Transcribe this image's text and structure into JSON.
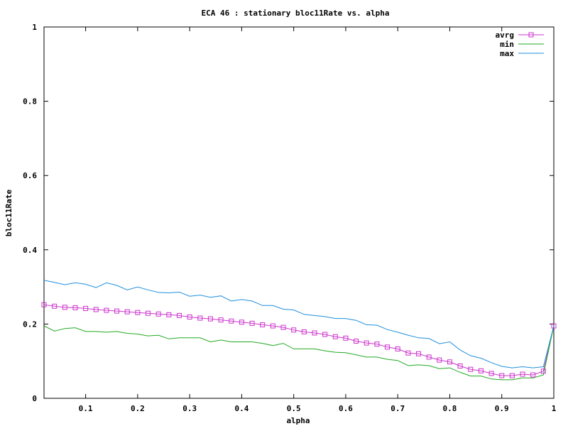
{
  "chart_data": {
    "type": "line",
    "title": "ECA 46 : stationary bloc11Rate vs. alpha",
    "xlabel": "alpha",
    "ylabel": "bloc11Rate",
    "xlim": [
      0.02,
      1.0
    ],
    "ylim": [
      0,
      1
    ],
    "xticks": [
      0.1,
      0.2,
      0.3,
      0.4,
      0.5,
      0.6,
      0.7,
      0.8,
      0.9,
      1.0
    ],
    "xtick_labels": [
      "0.1",
      "0.2",
      "0.3",
      "0.4",
      "0.5",
      "0.6",
      "0.7",
      "0.8",
      "0.9",
      "1"
    ],
    "yticks": [
      0,
      0.2,
      0.4,
      0.6,
      0.8,
      1.0
    ],
    "ytick_labels": [
      "0",
      "0.2",
      "0.4",
      "0.6",
      "0.8",
      "1"
    ],
    "grid": false,
    "legend_position": "top-right",
    "x": [
      0.02,
      0.04,
      0.06,
      0.08,
      0.1,
      0.12,
      0.14,
      0.16,
      0.18,
      0.2,
      0.22,
      0.24,
      0.26,
      0.28,
      0.3,
      0.32,
      0.34,
      0.36,
      0.38,
      0.4,
      0.42,
      0.44,
      0.46,
      0.48,
      0.5,
      0.52,
      0.54,
      0.56,
      0.58,
      0.6,
      0.62,
      0.64,
      0.66,
      0.68,
      0.7,
      0.72,
      0.74,
      0.76,
      0.78,
      0.8,
      0.82,
      0.84,
      0.86,
      0.88,
      0.9,
      0.92,
      0.94,
      0.96,
      0.98,
      1.0
    ],
    "series": [
      {
        "name": "avrg",
        "color": "#cc33cc",
        "marker": "square",
        "values": [
          0.252,
          0.248,
          0.245,
          0.244,
          0.242,
          0.239,
          0.237,
          0.235,
          0.233,
          0.231,
          0.229,
          0.227,
          0.225,
          0.223,
          0.219,
          0.216,
          0.214,
          0.211,
          0.208,
          0.205,
          0.202,
          0.198,
          0.195,
          0.191,
          0.184,
          0.179,
          0.176,
          0.172,
          0.166,
          0.162,
          0.154,
          0.149,
          0.146,
          0.138,
          0.133,
          0.122,
          0.12,
          0.111,
          0.103,
          0.098,
          0.087,
          0.078,
          0.074,
          0.067,
          0.061,
          0.061,
          0.065,
          0.063,
          0.073,
          0.195
        ]
      },
      {
        "name": "min",
        "color": "#22aa22",
        "marker": "none",
        "values": [
          0.195,
          0.181,
          0.188,
          0.19,
          0.18,
          0.18,
          0.178,
          0.18,
          0.175,
          0.173,
          0.168,
          0.17,
          0.16,
          0.163,
          0.163,
          0.163,
          0.152,
          0.157,
          0.152,
          0.152,
          0.152,
          0.148,
          0.142,
          0.148,
          0.133,
          0.133,
          0.133,
          0.128,
          0.124,
          0.123,
          0.117,
          0.111,
          0.111,
          0.105,
          0.102,
          0.088,
          0.09,
          0.088,
          0.08,
          0.082,
          0.07,
          0.06,
          0.06,
          0.052,
          0.05,
          0.05,
          0.055,
          0.055,
          0.063,
          0.195
        ]
      },
      {
        "name": "max",
        "color": "#1f8fdd",
        "marker": "none",
        "values": [
          0.318,
          0.312,
          0.306,
          0.311,
          0.307,
          0.298,
          0.311,
          0.304,
          0.292,
          0.3,
          0.292,
          0.285,
          0.284,
          0.286,
          0.275,
          0.278,
          0.272,
          0.276,
          0.262,
          0.266,
          0.262,
          0.25,
          0.25,
          0.24,
          0.238,
          0.226,
          0.223,
          0.22,
          0.215,
          0.215,
          0.21,
          0.198,
          0.197,
          0.185,
          0.178,
          0.17,
          0.163,
          0.161,
          0.147,
          0.152,
          0.13,
          0.115,
          0.108,
          0.096,
          0.086,
          0.082,
          0.085,
          0.082,
          0.085,
          0.195
        ]
      }
    ]
  }
}
